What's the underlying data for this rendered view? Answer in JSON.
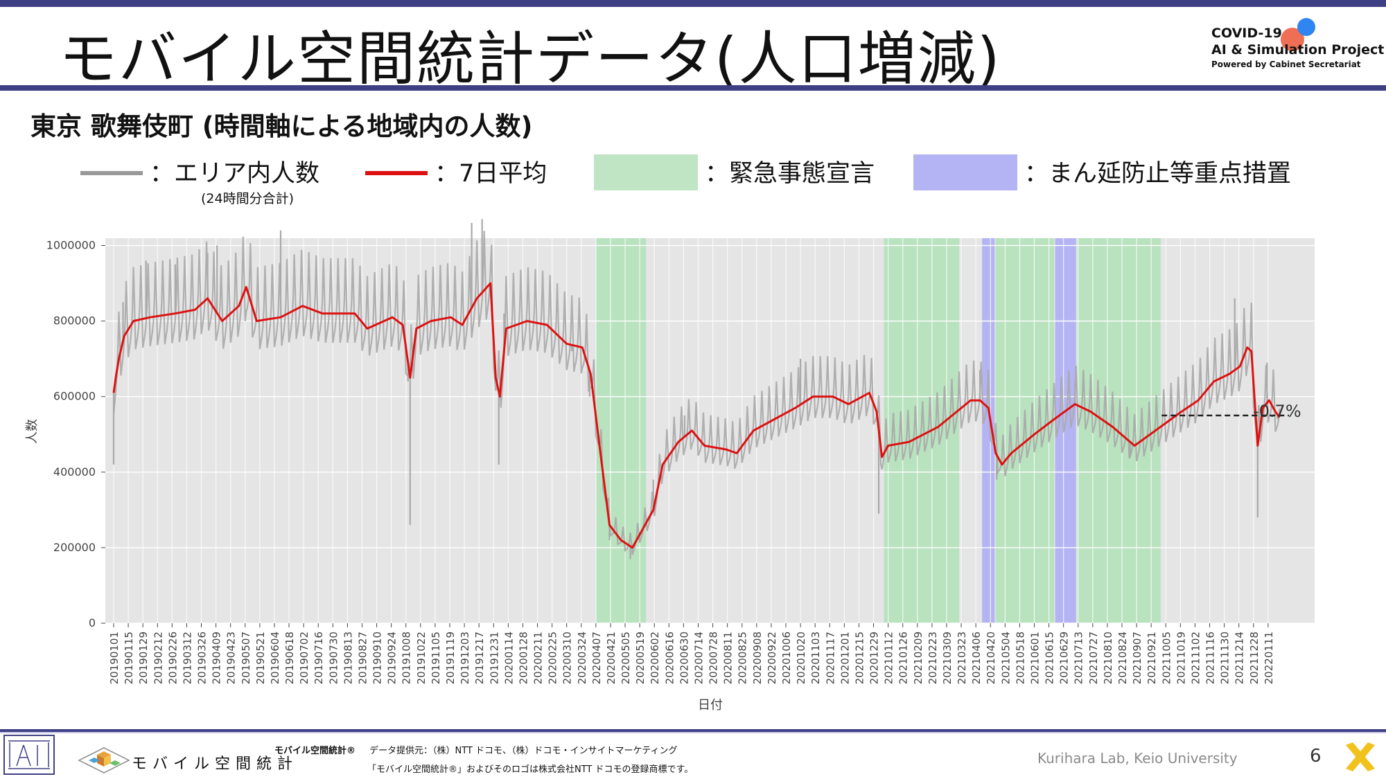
{
  "header": {
    "title": "モバイル空間統計データ(人口増減)",
    "logo_line1": "COVID-19",
    "logo_line2": "AI & Simulation Project",
    "logo_line3": "Powered by Cabinet Secretariat"
  },
  "subtitle": "東京 歌舞伎町 (時間軸による地域内の人数)",
  "legend": {
    "area_count": "：エリア内人数",
    "area_count_note": "(24時間分合計)",
    "avg7": "：7日平均",
    "emergency": "：緊急事態宣言",
    "semi_emergency": "：まん延防止等重点措置"
  },
  "colors": {
    "raw": "#a9a9a9",
    "avg": "#dd1111",
    "emergency": "#b9e2bf",
    "semi_emergency": "#b4b4f4",
    "plot_bg": "#e5e5e5",
    "accent": "#3f3f86"
  },
  "chart_data": {
    "type": "line",
    "xlabel": "日付",
    "ylabel": "人数",
    "ylim": [
      0,
      1100000
    ],
    "yticks": [
      0,
      200000,
      400000,
      600000,
      800000,
      1000000
    ],
    "ytick_labels": [
      "0",
      "200000",
      "400000",
      "600000",
      "800000",
      "1000000"
    ],
    "x_start": "2019-01-01",
    "x_end": "2022-01-31",
    "xtick_labels": [
      "20190101",
      "20190115",
      "20190129",
      "20190212",
      "20190226",
      "20190312",
      "20190326",
      "20190409",
      "20190423",
      "20190507",
      "20190521",
      "20190604",
      "20190618",
      "20190702",
      "20190716",
      "20190730",
      "20190813",
      "20190827",
      "20190910",
      "20190924",
      "20191008",
      "20191022",
      "20191105",
      "20191119",
      "20191203",
      "20191217",
      "20191231",
      "20200114",
      "20200128",
      "20200211",
      "20200225",
      "20200310",
      "20200324",
      "20200407",
      "20200421",
      "20200505",
      "20200519",
      "20200602",
      "20200616",
      "20200630",
      "20200714",
      "20200728",
      "20200811",
      "20200825",
      "20200908",
      "20200922",
      "20201006",
      "20201020",
      "20201103",
      "20201117",
      "20201201",
      "20201215",
      "20201229",
      "20210112",
      "20210126",
      "20210209",
      "20210223",
      "20210309",
      "20210323",
      "20210406",
      "20210420",
      "20210504",
      "20210518",
      "20210601",
      "20210615",
      "20210629",
      "20210713",
      "20210727",
      "20210810",
      "20210824",
      "20210907",
      "20210921",
      "20211005",
      "20211019",
      "20211102",
      "20211116",
      "20211130",
      "20211214",
      "20211228",
      "20220111"
    ],
    "series": [
      {
        "name": "エリア内人数",
        "points": [
          [
            "2019-01-01",
            420000
          ],
          [
            "2019-01-04",
            650000
          ],
          [
            "2019-01-10",
            850000
          ],
          [
            "2019-02-01",
            960000
          ],
          [
            "2019-03-01",
            950000
          ],
          [
            "2019-04-01",
            980000
          ],
          [
            "2019-04-10",
            1000000
          ],
          [
            "2019-06-10",
            1040000
          ],
          [
            "2019-10-10",
            640000
          ],
          [
            "2019-10-12",
            260000
          ],
          [
            "2019-12-10",
            1060000
          ],
          [
            "2019-12-20",
            1070000
          ],
          [
            "2020-01-05",
            420000
          ],
          [
            "2020-01-10",
            820000
          ],
          [
            "2020-03-15",
            720000
          ],
          [
            "2020-04-01",
            600000
          ],
          [
            "2020-04-20",
            220000
          ],
          [
            "2020-05-10",
            170000
          ],
          [
            "2020-06-01",
            380000
          ],
          [
            "2020-07-01",
            550000
          ],
          [
            "2020-10-20",
            700000
          ],
          [
            "2021-01-03",
            290000
          ],
          [
            "2021-01-10",
            470000
          ],
          [
            "2021-04-10",
            670000
          ],
          [
            "2021-04-26",
            380000
          ],
          [
            "2021-07-10",
            640000
          ],
          [
            "2021-09-01",
            440000
          ],
          [
            "2021-12-10",
            860000
          ],
          [
            "2022-01-01",
            280000
          ],
          [
            "2022-01-10",
            690000
          ],
          [
            "2022-01-20",
            540000
          ]
        ]
      },
      {
        "name": "7日平均",
        "points": [
          [
            "2019-01-01",
            610000
          ],
          [
            "2019-01-03",
            650000
          ],
          [
            "2019-01-06",
            700000
          ],
          [
            "2019-01-11",
            760000
          ],
          [
            "2019-01-20",
            800000
          ],
          [
            "2019-02-05",
            810000
          ],
          [
            "2019-03-01",
            820000
          ],
          [
            "2019-03-20",
            830000
          ],
          [
            "2019-04-01",
            860000
          ],
          [
            "2019-04-15",
            800000
          ],
          [
            "2019-05-01",
            840000
          ],
          [
            "2019-05-08",
            890000
          ],
          [
            "2019-05-18",
            800000
          ],
          [
            "2019-06-10",
            810000
          ],
          [
            "2019-07-01",
            840000
          ],
          [
            "2019-07-20",
            820000
          ],
          [
            "2019-08-20",
            820000
          ],
          [
            "2019-09-01",
            780000
          ],
          [
            "2019-09-25",
            810000
          ],
          [
            "2019-10-05",
            790000
          ],
          [
            "2019-10-12",
            650000
          ],
          [
            "2019-10-18",
            780000
          ],
          [
            "2019-11-01",
            800000
          ],
          [
            "2019-11-20",
            810000
          ],
          [
            "2019-12-01",
            790000
          ],
          [
            "2019-12-15",
            860000
          ],
          [
            "2019-12-28",
            900000
          ],
          [
            "2020-01-02",
            650000
          ],
          [
            "2020-01-06",
            600000
          ],
          [
            "2020-01-12",
            780000
          ],
          [
            "2020-02-01",
            800000
          ],
          [
            "2020-02-20",
            790000
          ],
          [
            "2020-03-10",
            740000
          ],
          [
            "2020-03-25",
            730000
          ],
          [
            "2020-04-02",
            660000
          ],
          [
            "2020-04-10",
            480000
          ],
          [
            "2020-04-20",
            260000
          ],
          [
            "2020-05-01",
            220000
          ],
          [
            "2020-05-12",
            200000
          ],
          [
            "2020-05-22",
            250000
          ],
          [
            "2020-06-01",
            300000
          ],
          [
            "2020-06-10",
            420000
          ],
          [
            "2020-06-25",
            480000
          ],
          [
            "2020-07-08",
            510000
          ],
          [
            "2020-07-20",
            470000
          ],
          [
            "2020-08-10",
            460000
          ],
          [
            "2020-08-20",
            450000
          ],
          [
            "2020-09-05",
            510000
          ],
          [
            "2020-09-25",
            540000
          ],
          [
            "2020-10-15",
            570000
          ],
          [
            "2020-11-01",
            600000
          ],
          [
            "2020-11-20",
            600000
          ],
          [
            "2020-12-05",
            580000
          ],
          [
            "2020-12-25",
            610000
          ],
          [
            "2021-01-01",
            560000
          ],
          [
            "2021-01-06",
            440000
          ],
          [
            "2021-01-12",
            470000
          ],
          [
            "2021-02-01",
            480000
          ],
          [
            "2021-03-01",
            520000
          ],
          [
            "2021-04-01",
            590000
          ],
          [
            "2021-04-10",
            590000
          ],
          [
            "2021-04-18",
            570000
          ],
          [
            "2021-04-25",
            450000
          ],
          [
            "2021-05-01",
            420000
          ],
          [
            "2021-05-10",
            450000
          ],
          [
            "2021-06-01",
            500000
          ],
          [
            "2021-06-20",
            540000
          ],
          [
            "2021-07-10",
            580000
          ],
          [
            "2021-07-25",
            560000
          ],
          [
            "2021-08-15",
            520000
          ],
          [
            "2021-09-05",
            470000
          ],
          [
            "2021-09-20",
            500000
          ],
          [
            "2021-10-05",
            530000
          ],
          [
            "2021-10-20",
            560000
          ],
          [
            "2021-11-05",
            590000
          ],
          [
            "2021-11-20",
            640000
          ],
          [
            "2021-12-05",
            660000
          ],
          [
            "2021-12-15",
            680000
          ],
          [
            "2021-12-22",
            730000
          ],
          [
            "2021-12-26",
            720000
          ],
          [
            "2022-01-01",
            470000
          ],
          [
            "2022-01-06",
            570000
          ],
          [
            "2022-01-12",
            590000
          ],
          [
            "2022-01-18",
            560000
          ],
          [
            "2022-01-22",
            545000
          ]
        ]
      }
    ],
    "emergency_periods": [
      [
        "2020-04-07",
        "2020-05-25"
      ],
      [
        "2021-01-08",
        "2021-03-21"
      ],
      [
        "2021-04-25",
        "2021-06-20"
      ],
      [
        "2021-07-12",
        "2021-09-30"
      ]
    ],
    "semi_emergency_periods": [
      [
        "2021-04-12",
        "2021-04-24"
      ],
      [
        "2021-06-21",
        "2021-07-11"
      ]
    ],
    "reference_line": {
      "from": "2021-10-01",
      "to": "2022-01-31",
      "value": 550000
    },
    "annotation": "-0.7%"
  },
  "footer": {
    "app_name": "モバイル空間統計",
    "source_title": "モバイル空間統計®",
    "source_line1": "データ提供元：（株）NTT ドコモ、（株）ドコモ・インサイトマーケティング",
    "source_line2": "「モバイル空間統計®」およびそのロゴは株式会社NTT ドコモの登録商標です。",
    "lab": "Kurihara Lab, Keio University",
    "page": "6"
  }
}
